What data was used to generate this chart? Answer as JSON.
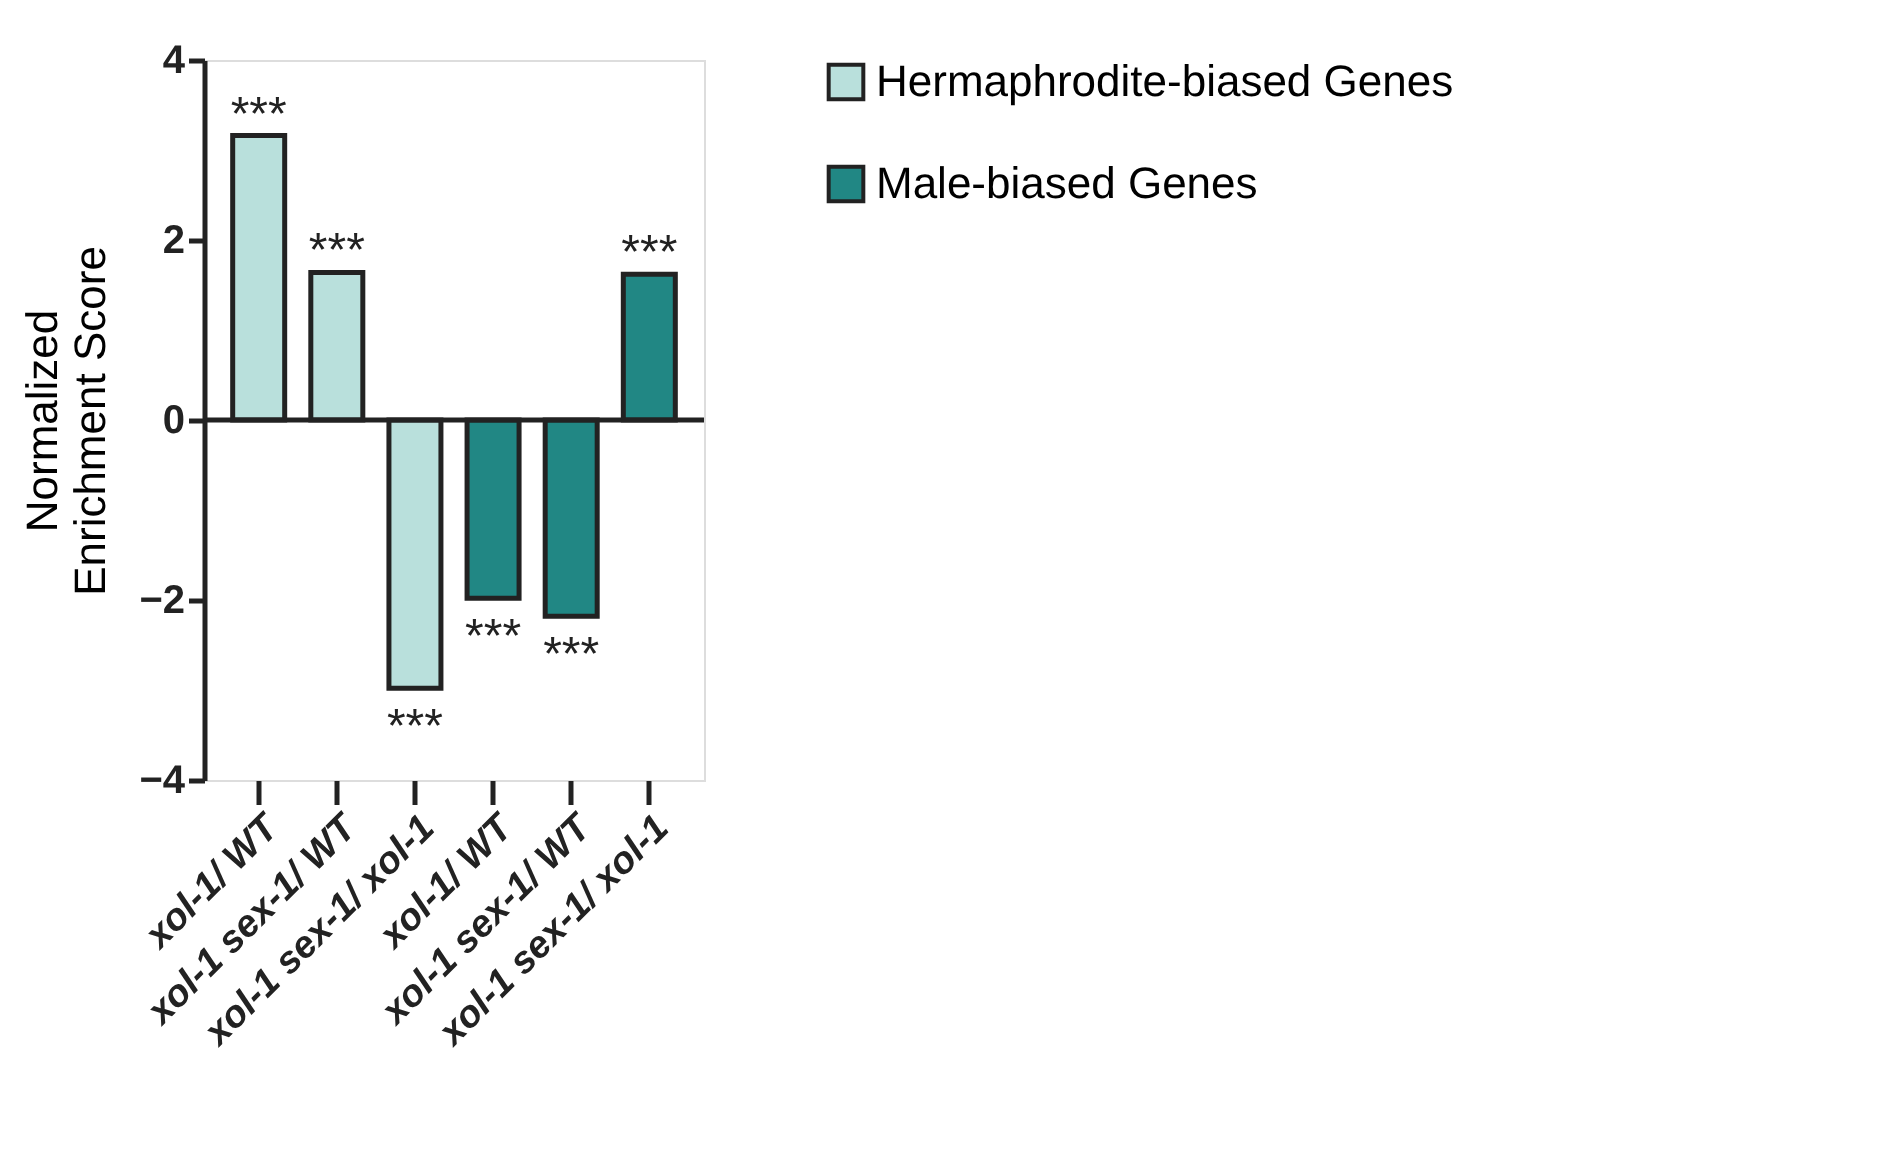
{
  "chart_data": {
    "type": "bar",
    "ylabel": "Normalized\nEnrichment Score",
    "categories": [
      "xol-1/ WT",
      "xol-1 sex-1/ WT",
      "xol-1 sex-1/ xol-1",
      "xol-1/ WT",
      "xol-1 sex-1/ WT",
      "xol-1 sex-1/ xol-1"
    ],
    "series": [
      {
        "name": "Hermaphrodite-biased Genes",
        "color": "#b9e0dc",
        "values": [
          3.16,
          1.64,
          -2.98,
          null,
          null,
          null
        ],
        "value_labels": [
          "***",
          "***",
          "***",
          null,
          null,
          null
        ]
      },
      {
        "name": "Male-biased Genes",
        "color": "#218784",
        "values": [
          null,
          null,
          null,
          -1.98,
          -2.18,
          1.62
        ],
        "value_labels": [
          null,
          null,
          null,
          "***",
          "***",
          "***"
        ]
      }
    ],
    "ylim": [
      -4,
      4
    ],
    "yticks": [
      -4,
      -2,
      0,
      2,
      4
    ],
    "ref_lines": [
      {
        "axis": "y",
        "value": 0
      }
    ],
    "grid": false,
    "legend": "top right"
  }
}
